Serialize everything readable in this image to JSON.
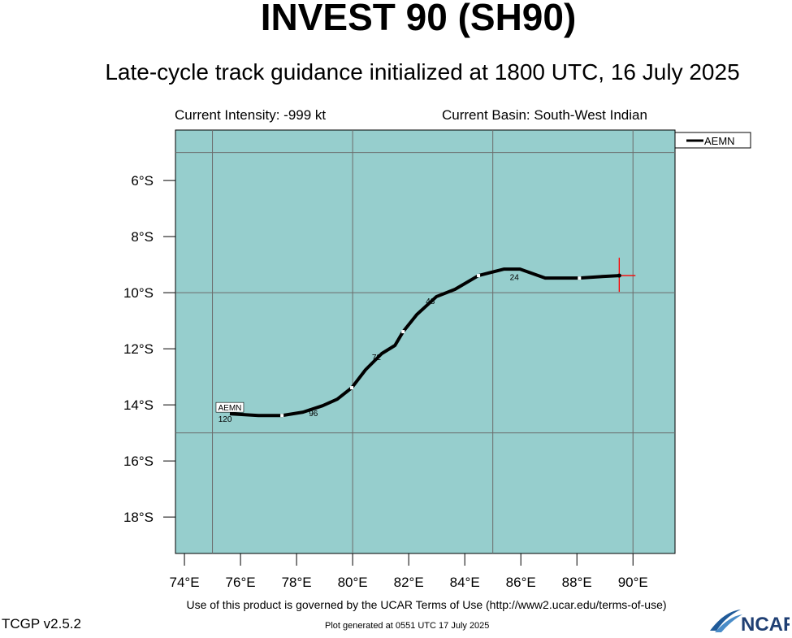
{
  "header": {
    "title": "INVEST 90 (SH90)",
    "subtitle": "Late-cycle track guidance initialized at 1800 UTC, 16 July 2025",
    "current_intensity": "Current Intensity: -999 kt",
    "current_basin": "Current Basin: South-West Indian"
  },
  "footer": {
    "terms": "Use of this product is governed by the UCAR Terms of Use (http://www2.ucar.edu/terms-of-use)",
    "version": "TCGP v2.5.2",
    "generated": "Plot generated at 0551 UTC   17 July 2025",
    "logo": "NCAR"
  },
  "chart_data": {
    "type": "line",
    "xlim": [
      73.68,
      91.5
    ],
    "ylim": [
      4.2,
      19.3
    ],
    "xticks": [
      74,
      76,
      78,
      80,
      82,
      84,
      86,
      88,
      90
    ],
    "xtick_labels": [
      "74°E",
      "76°E",
      "78°E",
      "80°E",
      "82°E",
      "84°E",
      "86°E",
      "88°E",
      "90°E"
    ],
    "yticks": [
      6,
      8,
      10,
      12,
      14,
      16,
      18
    ],
    "ytick_labels": [
      "6°S",
      "8°S",
      "10°S",
      "12°S",
      "14°S",
      "16°S",
      "18°S"
    ],
    "grid_lon": [
      75,
      80,
      85,
      90
    ],
    "grid_lat": [
      5,
      10,
      15
    ],
    "legend": {
      "entries": [
        "AEMN"
      ],
      "placement": "outside-top-right"
    },
    "colors": {
      "ocean": "#96cecd",
      "track": "#000000",
      "current": "#ff0000"
    },
    "current_position": {
      "lon": 89.51,
      "lat": 9.39
    },
    "series": [
      {
        "name": "AEMN",
        "label": "AEMN",
        "lon": [
          89.51,
          88.96,
          88.09,
          86.87,
          85.97,
          85.39,
          84.49,
          83.65,
          82.99,
          82.29,
          81.8,
          81.51,
          81.04,
          80.46,
          79.97,
          79.45,
          78.93,
          78.23,
          77.48,
          76.64,
          75.62
        ],
        "lat": [
          9.39,
          9.42,
          9.48,
          9.48,
          9.16,
          9.16,
          9.39,
          9.88,
          10.14,
          10.78,
          11.39,
          11.88,
          12.17,
          12.75,
          13.39,
          13.8,
          14.03,
          14.26,
          14.38,
          14.38,
          14.32
        ],
        "white_markers_lon_lat": [
          [
            88.09,
            9.48
          ],
          [
            84.49,
            9.39
          ],
          [
            81.8,
            11.39
          ],
          [
            79.97,
            13.39
          ],
          [
            77.48,
            14.38
          ]
        ],
        "hour_labels": [
          {
            "text": "24",
            "lon": 85.77,
            "lat": 9.55
          },
          {
            "text": "48",
            "lon": 82.77,
            "lat": 10.4
          },
          {
            "text": "72",
            "lon": 80.85,
            "lat": 12.4
          },
          {
            "text": "96",
            "lon": 78.6,
            "lat": 14.4
          },
          {
            "text": "120",
            "lon": 75.45,
            "lat": 14.6
          }
        ]
      }
    ]
  }
}
